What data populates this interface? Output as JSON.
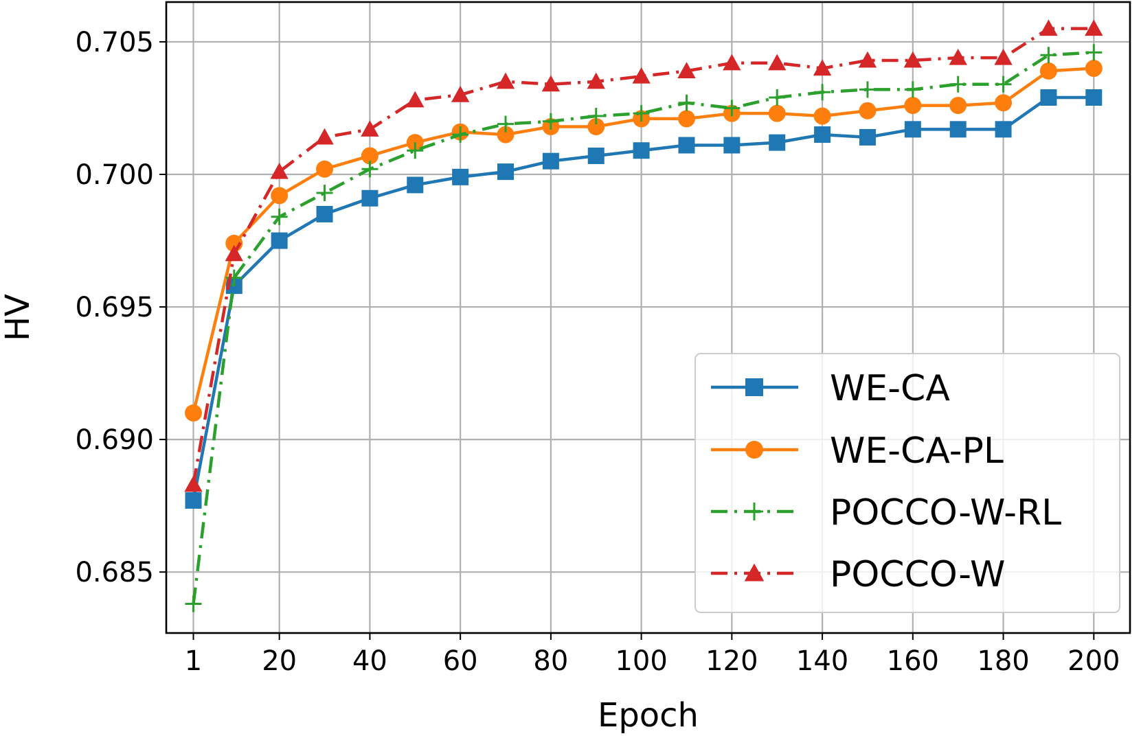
{
  "chart_data": {
    "type": "line",
    "title": "",
    "xlabel": "Epoch",
    "ylabel": "HV",
    "grid": true,
    "legend_position": "bottom-right",
    "x": [
      1,
      10,
      20,
      30,
      40,
      50,
      60,
      70,
      80,
      90,
      100,
      110,
      120,
      130,
      140,
      150,
      160,
      170,
      180,
      190,
      200
    ],
    "x_ticks": [
      1,
      20,
      40,
      60,
      80,
      100,
      120,
      140,
      160,
      180,
      200
    ],
    "x_tick_labels": [
      "1",
      "20",
      "40",
      "60",
      "80",
      "100",
      "120",
      "140",
      "160",
      "180",
      "200"
    ],
    "y_ticks": [
      0.685,
      0.69,
      0.695,
      0.7,
      0.705
    ],
    "y_tick_labels": [
      "0.685",
      "0.690",
      "0.695",
      "0.700",
      "0.705"
    ],
    "xlim": [
      -5,
      208
    ],
    "ylim": [
      0.6827,
      0.7065
    ],
    "series": [
      {
        "name": "WE-CA",
        "color": "#1f77b4",
        "marker": "square",
        "linestyle": "solid",
        "values": [
          0.6877,
          0.6958,
          0.6975,
          0.6985,
          0.6991,
          0.6996,
          0.6999,
          0.7001,
          0.7005,
          0.7007,
          0.7009,
          0.7011,
          0.7011,
          0.7012,
          0.7015,
          0.7014,
          0.7017,
          0.7017,
          0.7017,
          0.7029,
          0.7029
        ]
      },
      {
        "name": "WE-CA-PL",
        "color": "#ff7f0e",
        "marker": "circle",
        "linestyle": "solid",
        "values": [
          0.691,
          0.6974,
          0.6992,
          0.7002,
          0.7007,
          0.7012,
          0.7016,
          0.7015,
          0.7018,
          0.7018,
          0.7021,
          0.7021,
          0.7023,
          0.7023,
          0.7022,
          0.7024,
          0.7026,
          0.7026,
          0.7027,
          0.7039,
          0.704
        ]
      },
      {
        "name": "POCCO-W-RL",
        "color": "#2ca02c",
        "marker": "plus",
        "linestyle": "dashdot",
        "values": [
          0.6838,
          0.6961,
          0.6984,
          0.6993,
          0.7002,
          0.7009,
          0.7015,
          0.7019,
          0.702,
          0.7022,
          0.7023,
          0.7027,
          0.7025,
          0.7029,
          0.7031,
          0.7032,
          0.7032,
          0.7034,
          0.7034,
          0.7045,
          0.7046
        ]
      },
      {
        "name": "POCCO-W",
        "color": "#d62728",
        "marker": "triangle",
        "linestyle": "dashdot",
        "values": [
          0.6883,
          0.697,
          0.7001,
          0.7014,
          0.7017,
          0.7028,
          0.703,
          0.7035,
          0.7034,
          0.7035,
          0.7037,
          0.7039,
          0.7042,
          0.7042,
          0.704,
          0.7043,
          0.7043,
          0.7044,
          0.7044,
          0.7055,
          0.7055
        ]
      }
    ]
  }
}
